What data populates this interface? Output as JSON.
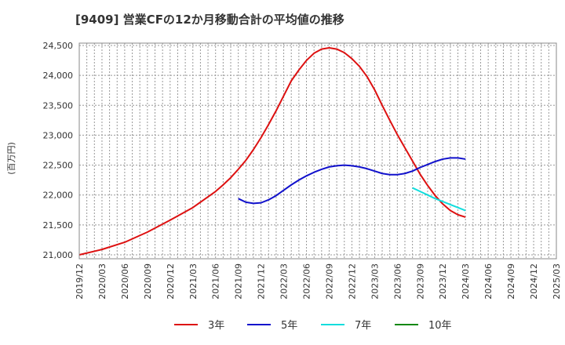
{
  "chart_data": {
    "type": "line",
    "title": "[9409]  営業CFの12か月移動合計の平均値の推移",
    "ylabel": "(百万円)",
    "xlabel": "",
    "ylim": [
      21000,
      24500
    ],
    "yticks": [
      21000,
      21500,
      22000,
      22500,
      23000,
      23500,
      24000,
      24500
    ],
    "ytick_labels": [
      "21,000",
      "21,500",
      "22,000",
      "22,500",
      "23,000",
      "23,500",
      "24,000",
      "24,500"
    ],
    "xticks": [
      "2019/12",
      "2020/03",
      "2020/06",
      "2020/09",
      "2020/12",
      "2021/03",
      "2021/06",
      "2021/09",
      "2021/12",
      "2022/03",
      "2022/06",
      "2022/09",
      "2022/12",
      "2023/03",
      "2023/06",
      "2023/09",
      "2023/12",
      "2024/03",
      "2024/06",
      "2024/09",
      "2024/12",
      "2025/03"
    ],
    "grid": true,
    "legend_position": "bottom",
    "series": [
      {
        "name": "3年",
        "color": "#dd1111",
        "x": [
          "2019/12",
          "2020/03",
          "2020/06",
          "2020/09",
          "2020/12",
          "2021/03",
          "2021/06",
          "2021/07",
          "2021/08",
          "2021/09",
          "2021/10",
          "2021/11",
          "2021/12",
          "2022/01",
          "2022/02",
          "2022/03",
          "2022/04",
          "2022/05",
          "2022/06",
          "2022/07",
          "2022/08",
          "2022/09",
          "2022/10",
          "2022/11",
          "2022/12",
          "2023/01",
          "2023/02",
          "2023/03",
          "2023/04",
          "2023/05",
          "2023/06",
          "2023/07",
          "2023/08",
          "2023/09",
          "2023/10",
          "2023/11",
          "2023/12",
          "2024/01",
          "2024/02",
          "2024/03"
        ],
        "values": [
          21000,
          21090,
          21210,
          21380,
          21580,
          21790,
          22060,
          22170,
          22290,
          22430,
          22580,
          22760,
          22960,
          23180,
          23410,
          23660,
          23910,
          24090,
          24250,
          24370,
          24440,
          24460,
          24440,
          24380,
          24280,
          24150,
          23980,
          23760,
          23500,
          23250,
          23010,
          22790,
          22570,
          22350,
          22160,
          21990,
          21850,
          21740,
          21670,
          21630
        ]
      },
      {
        "name": "5年",
        "color": "#1111cc",
        "x": [
          "2021/09",
          "2021/10",
          "2021/11",
          "2021/12",
          "2022/01",
          "2022/02",
          "2022/03",
          "2022/04",
          "2022/05",
          "2022/06",
          "2022/07",
          "2022/08",
          "2022/09",
          "2022/10",
          "2022/11",
          "2022/12",
          "2023/01",
          "2023/02",
          "2023/03",
          "2023/04",
          "2023/05",
          "2023/06",
          "2023/07",
          "2023/08",
          "2023/09",
          "2023/10",
          "2023/11",
          "2023/12",
          "2024/01",
          "2024/02",
          "2024/03"
        ],
        "values": [
          21940,
          21880,
          21860,
          21870,
          21920,
          21990,
          22080,
          22170,
          22250,
          22320,
          22380,
          22430,
          22470,
          22490,
          22500,
          22490,
          22470,
          22440,
          22400,
          22360,
          22340,
          22340,
          22360,
          22400,
          22460,
          22510,
          22560,
          22600,
          22620,
          22620,
          22600
        ]
      },
      {
        "name": "7年",
        "color": "#11dddd",
        "x": [
          "2023/08",
          "2023/09",
          "2023/10",
          "2023/11",
          "2023/12",
          "2024/01",
          "2024/02",
          "2024/03"
        ],
        "values": [
          22120,
          22060,
          22000,
          21940,
          21890,
          21840,
          21790,
          21740
        ]
      },
      {
        "name": "10年",
        "color": "#118811",
        "x": [],
        "values": []
      }
    ]
  }
}
